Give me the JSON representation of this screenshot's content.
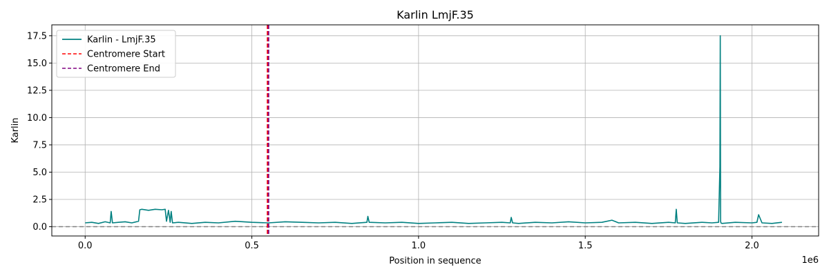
{
  "chart_data": {
    "type": "line",
    "title": "Karlin LmjF.35",
    "xlabel": "Position in sequence",
    "ylabel": "Karlin",
    "x_offset_label": "1e6",
    "xlim": [
      -100000,
      2200000
    ],
    "ylim": [
      -0.85,
      18.5
    ],
    "grid": true,
    "legend_position": "upper-left",
    "x_ticks": [
      {
        "value": 0,
        "label": "0.0"
      },
      {
        "value": 500000,
        "label": "0.5"
      },
      {
        "value": 1000000,
        "label": "1.0"
      },
      {
        "value": 1500000,
        "label": "1.5"
      },
      {
        "value": 2000000,
        "label": "2.0"
      }
    ],
    "y_ticks": [
      {
        "value": 0.0,
        "label": "0.0"
      },
      {
        "value": 2.5,
        "label": "2.5"
      },
      {
        "value": 5.0,
        "label": "5.0"
      },
      {
        "value": 7.5,
        "label": "7.5"
      },
      {
        "value": 10.0,
        "label": "10.0"
      },
      {
        "value": 12.5,
        "label": "12.5"
      },
      {
        "value": 15.0,
        "label": "15.0"
      },
      {
        "value": 17.5,
        "label": "17.5"
      }
    ],
    "series": [
      {
        "name": "Karlin - LmjF.35",
        "color": "#008080",
        "style": "solid",
        "x": [
          0,
          20000,
          40000,
          60000,
          75000,
          78000,
          82000,
          100000,
          120000,
          140000,
          160000,
          164000,
          170000,
          190000,
          210000,
          230000,
          240000,
          244000,
          250000,
          255000,
          258000,
          262000,
          280000,
          320000,
          360000,
          400000,
          450000,
          500000,
          550000,
          600000,
          650000,
          700000,
          750000,
          800000,
          845000,
          848000,
          852000,
          900000,
          950000,
          1000000,
          1050000,
          1100000,
          1150000,
          1200000,
          1250000,
          1275000,
          1278000,
          1282000,
          1300000,
          1350000,
          1400000,
          1450000,
          1500000,
          1550000,
          1580000,
          1600000,
          1650000,
          1700000,
          1750000,
          1770000,
          1773000,
          1776000,
          1800000,
          1850000,
          1880000,
          1900000,
          1904000,
          1905000,
          1906000,
          1907000,
          1910000,
          1950000,
          2000000,
          2015000,
          2020000,
          2030000,
          2060000,
          2090000
        ],
        "y": [
          0.35,
          0.4,
          0.3,
          0.45,
          0.35,
          1.4,
          0.35,
          0.4,
          0.45,
          0.35,
          0.5,
          1.55,
          1.6,
          1.5,
          1.6,
          1.55,
          1.6,
          0.5,
          1.5,
          0.4,
          1.4,
          0.35,
          0.4,
          0.3,
          0.4,
          0.35,
          0.5,
          0.4,
          0.35,
          0.45,
          0.4,
          0.35,
          0.4,
          0.3,
          0.4,
          0.95,
          0.4,
          0.35,
          0.4,
          0.3,
          0.35,
          0.4,
          0.3,
          0.35,
          0.4,
          0.35,
          0.85,
          0.35,
          0.3,
          0.4,
          0.35,
          0.45,
          0.35,
          0.4,
          0.6,
          0.35,
          0.4,
          0.3,
          0.4,
          0.35,
          1.6,
          0.35,
          0.3,
          0.4,
          0.35,
          0.4,
          5.5,
          17.5,
          0.5,
          0.35,
          0.3,
          0.4,
          0.35,
          0.4,
          1.1,
          0.35,
          0.3,
          0.4
        ]
      },
      {
        "name": "Centromere Start",
        "color": "#ff0000",
        "style": "dashed",
        "x_value": 547000
      },
      {
        "name": "Centromere End",
        "color": "#800080",
        "style": "dashed",
        "x_value": 550000
      }
    ],
    "reference_line": {
      "y_value": 0,
      "color": "#808080",
      "style": "dashed"
    }
  }
}
